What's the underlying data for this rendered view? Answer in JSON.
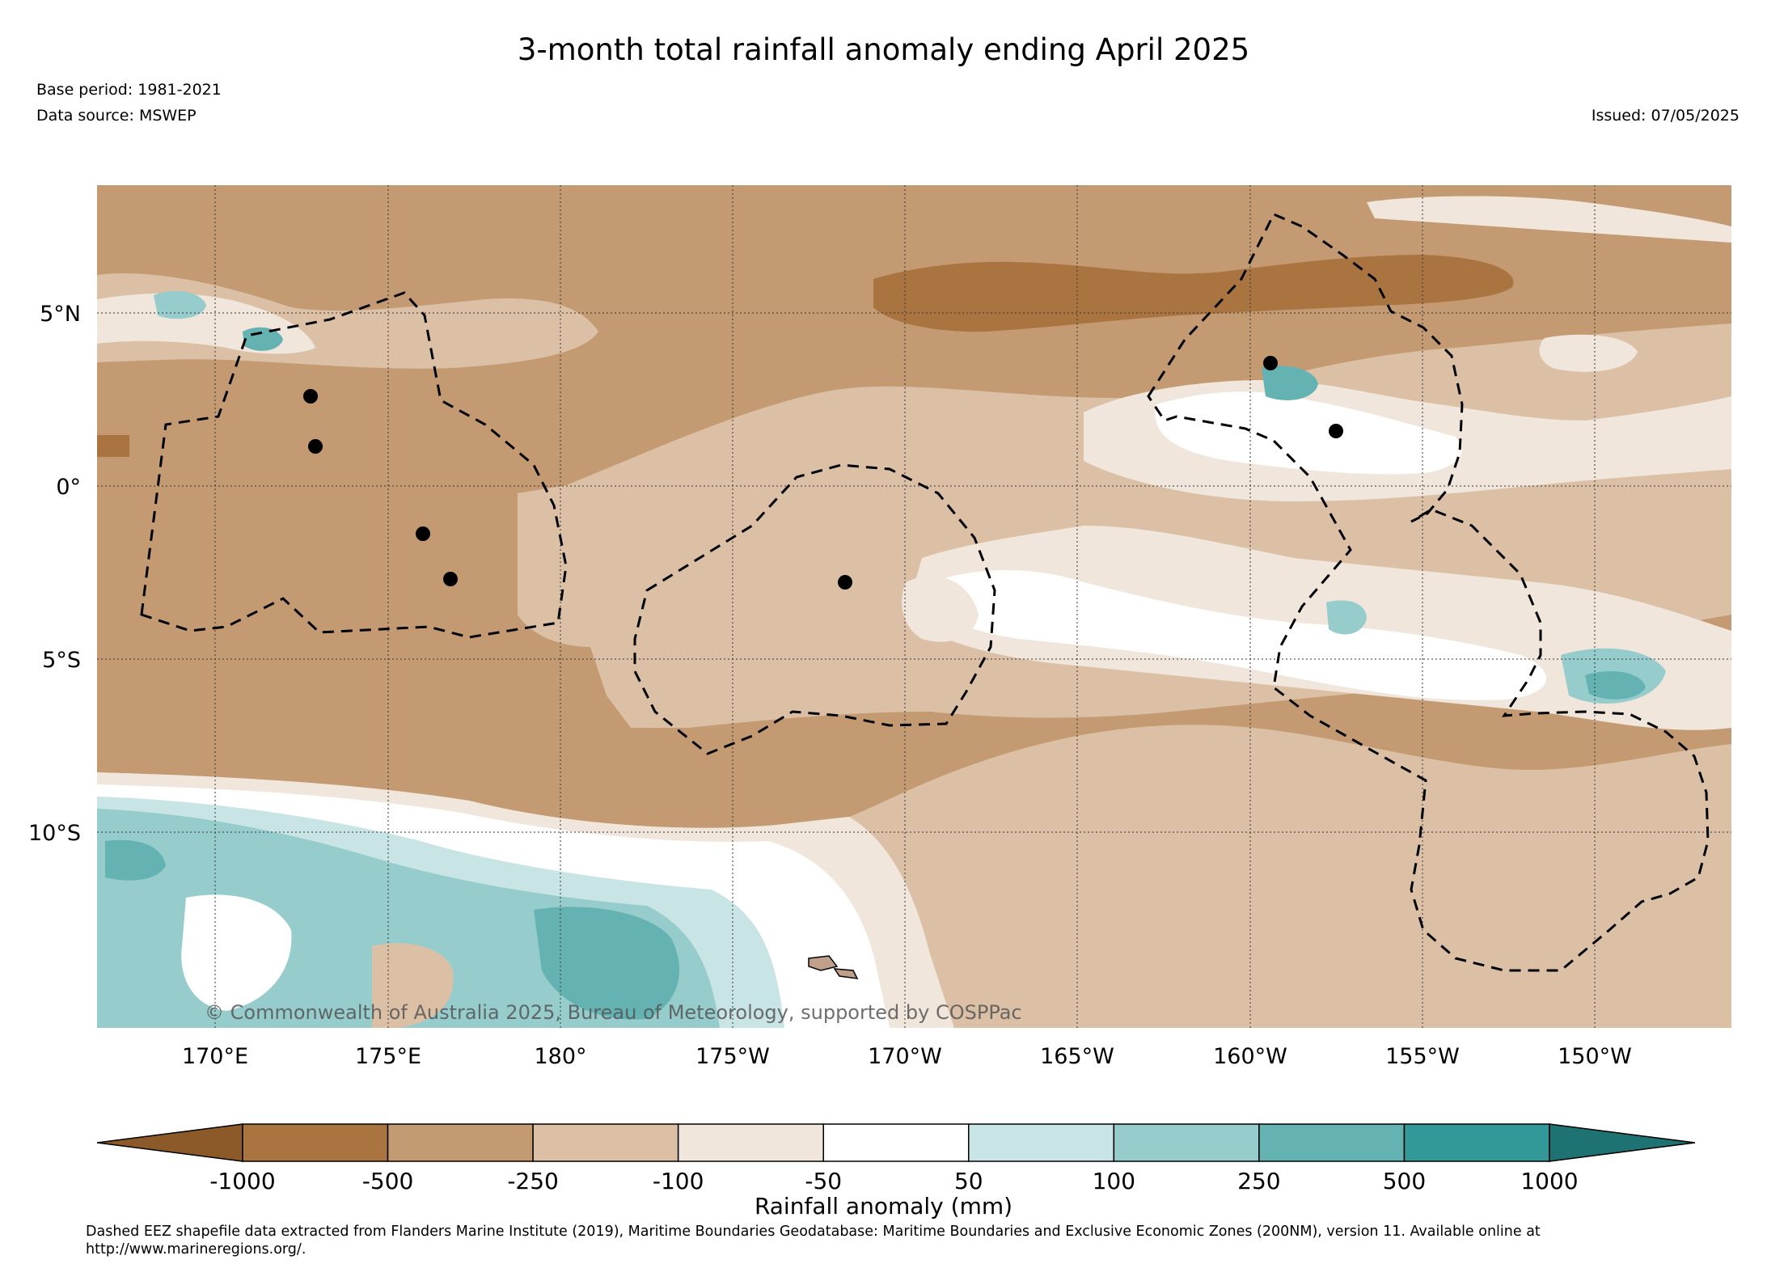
{
  "title": "3-month total rainfall anomaly ending April 2025",
  "base_period": "Base period: 1981-2021",
  "data_source": "Data source: MSWEP",
  "issued": "Issued: 07/05/2025",
  "map": {
    "lat_labels": [
      "5°N",
      "0°",
      "5°S",
      "10°S"
    ],
    "lon_labels": [
      "170°E",
      "175°E",
      "180°",
      "175°W",
      "170°W",
      "165°W",
      "160°W",
      "155°W",
      "150°W"
    ],
    "copyright": "© Commonwealth of Australia 2025, Bureau of Meteorology, supported by COSPPac",
    "eez_boundaries": "dashed",
    "islands": "black dots"
  },
  "colorbar": {
    "title": "Rainfall anomaly (mm)",
    "tick_labels": [
      "-1000",
      "-500",
      "-250",
      "-100",
      "-50",
      "50",
      "100",
      "250",
      "500",
      "1000"
    ],
    "colors": [
      "#8c5a28",
      "#aa7440",
      "#c39a72",
      "#dcc0a6",
      "#f0e6dc",
      "#ffffff",
      "#c8e4e4",
      "#96cccc",
      "#64b2b2",
      "#329898",
      "#1e7272"
    ],
    "extend": "both"
  },
  "footnote": "Dashed EEZ shapefile data extracted from Flanders Marine Institute (2019), Maritime Boundaries Geodatabase: Maritime Boundaries and Exclusive Economic Zones (200NM), version 11. Available online at http://www.marineregions.org/."
}
